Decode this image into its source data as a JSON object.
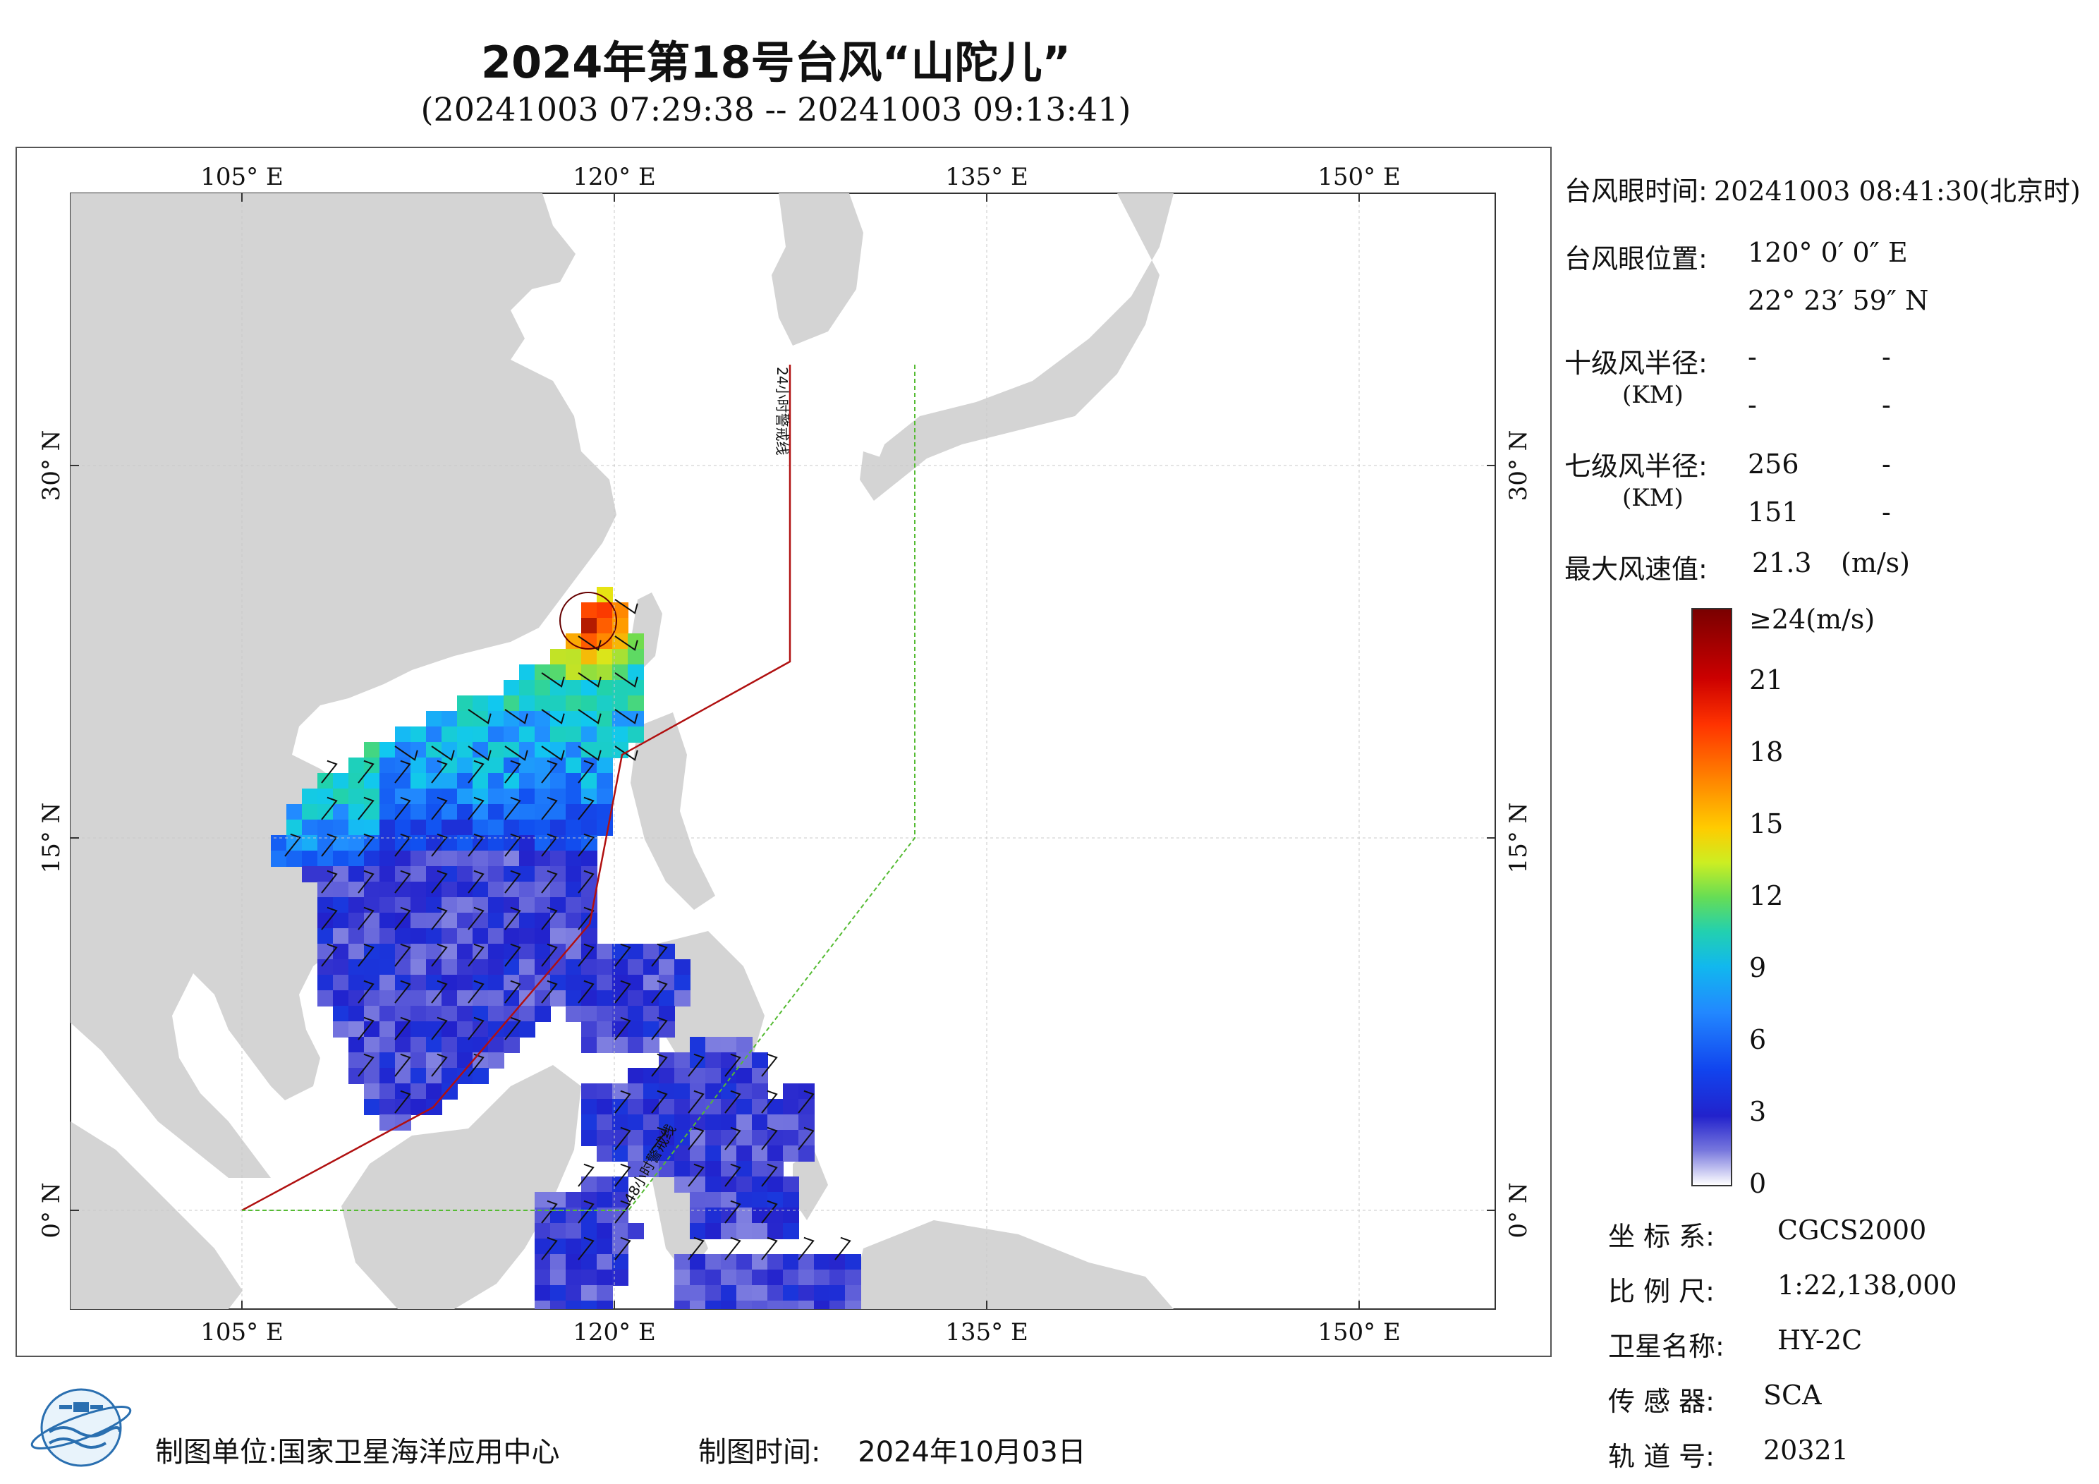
{
  "title": "2024年第18号台风“山陀儿”",
  "subtitle": "(20241003 07:29:38 -- 20241003 09:13:41)",
  "map": {
    "lon_ticks": [
      "105° E",
      "120° E",
      "135° E",
      "150° E"
    ],
    "lat_ticks": [
      "30° N",
      "15° N",
      "0° N"
    ],
    "warning_24h": "24小时警戒线",
    "warning_48h": "48小时警戒线",
    "colors": {
      "land": "#d4d4d4",
      "ocean": "#ffffff",
      "warning_24h": "#b01010",
      "warning_48h": "#55bb33"
    }
  },
  "info": {
    "eye_time_label": "台风眼时间:",
    "eye_time_value": "20241003 08:41:30(北京时)",
    "eye_pos_label": "台风眼位置:",
    "eye_lon": "120° 0′ 0″ E",
    "eye_lat": "22° 23′ 59″ N",
    "r10_label": "十级风半径:",
    "r10_unit": "(KM)",
    "r10_values": [
      "-",
      "-",
      "-",
      "-"
    ],
    "r7_label": "七级风半径:",
    "r7_unit": "(KM)",
    "r7_values": [
      "256",
      "-",
      "151",
      "-"
    ],
    "max_wind_label": "最大风速值:",
    "max_wind_value": "21.3",
    "max_wind_unit": "(m/s)"
  },
  "colorbar": {
    "labels": [
      "≥24(m/s)",
      "21",
      "18",
      "15",
      "12",
      "9",
      "6",
      "3",
      "0"
    ],
    "values": [
      24,
      21,
      18,
      15,
      12,
      9,
      6,
      3,
      0
    ]
  },
  "meta": {
    "crs_label": "坐 标 系:",
    "crs_value": "CGCS2000",
    "scale_label": "比 例 尺:",
    "scale_value": "1:22,138,000",
    "satellite_label": "卫星名称:",
    "satellite_value": "HY-2C",
    "sensor_label": "传 感 器:",
    "sensor_value": "SCA",
    "orbit_label": "轨 道 号:",
    "orbit_value": "20321"
  },
  "footer": {
    "org_label": "制图单位:",
    "org_value": "国家卫星海洋应用中心",
    "date_label": "制图时间:",
    "date_value": "2024年10月03日"
  }
}
